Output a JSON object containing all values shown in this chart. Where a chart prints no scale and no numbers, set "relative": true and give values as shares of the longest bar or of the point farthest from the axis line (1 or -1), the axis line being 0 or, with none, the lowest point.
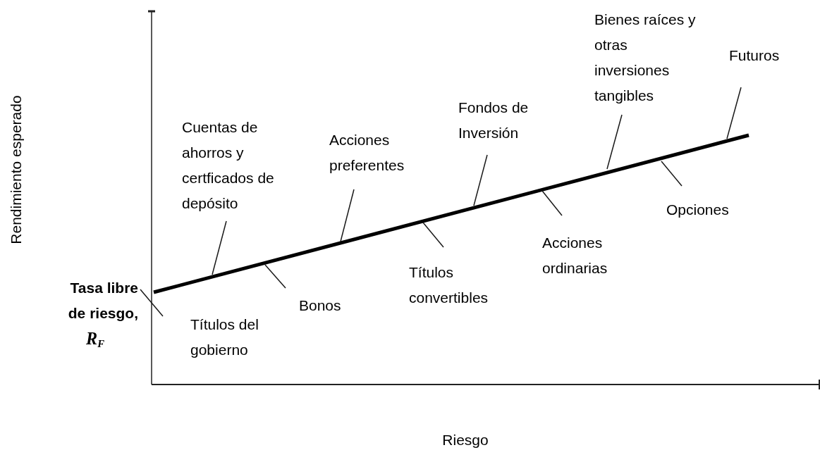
{
  "chart_data": {
    "type": "line",
    "relative": true,
    "xlabel": "Riesgo",
    "ylabel": "Rendimiento esperado",
    "categories": [
      null,
      null
    ],
    "series": [
      {
        "color": "#000000",
        "values": [
          0.37,
          1
        ]
      }
    ],
    "annotations": [
      "Cuentas de ahorros y certficados de depósito",
      "Títulos del gobierno",
      "Bonos",
      "Acciones preferentes",
      "Títulos convertibles",
      "Fondos de Inversión",
      "Acciones ordinarias",
      "Bienes raíces y otras inversiones tangibles",
      "Opciones",
      "Futuros",
      "Tasa libre de riesgo, R$_{F}$"
    ]
  }
}
